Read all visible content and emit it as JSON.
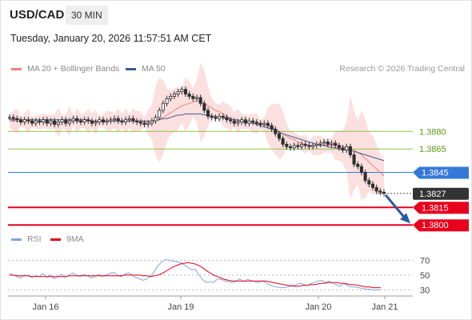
{
  "header": {
    "symbol": "USD/CAD",
    "timeframe": "30 MIN",
    "datetime": "Tuesday, January 20, 2026 11:57:51 AM CET"
  },
  "legend": {
    "ma20": "MA 20 + Bollinger Bands",
    "ma50": "MA 50",
    "credit": "Research © 2026 Trading Central",
    "rsi": "RSI",
    "ma9": "9MA"
  },
  "colors": {
    "ma20": "#f08080",
    "ma50": "#3a5a98",
    "band": "#fbd5d5",
    "candle": "#2e2e2e",
    "green_level": "#8bc34a",
    "blue_level": "#3579d8",
    "red_level": "#e8001c",
    "current": "#333333",
    "rsi": "#7da7e8",
    "rsi_ma": "#e8001c",
    "arrow": "#2f5a9b"
  },
  "chart_data": [
    {
      "type": "candlestick",
      "title": "USD/CAD 30 MIN",
      "x_labels": [
        "Jan 16",
        "Jan 19",
        "Jan 20",
        "Jan 21"
      ],
      "ylim": [
        1.3794,
        1.3924
      ],
      "levels": [
        {
          "value": 1.388,
          "label": "1.3880",
          "kind": "resistance",
          "color": "#8bc34a"
        },
        {
          "value": 1.3865,
          "label": "1.3865",
          "kind": "resistance",
          "color": "#8bc34a"
        },
        {
          "value": 1.3845,
          "label": "1.3845",
          "kind": "pivot",
          "color": "#3579d8"
        },
        {
          "value": 1.3827,
          "label": "1.3827",
          "kind": "current",
          "color": "#333333"
        },
        {
          "value": 1.3815,
          "label": "1.3815",
          "kind": "support",
          "color": "#e8001c"
        },
        {
          "value": 1.38,
          "label": "1.3800",
          "kind": "support",
          "color": "#e8001c"
        }
      ],
      "price_series": [
        1.3892,
        1.3891,
        1.389,
        1.3888,
        1.389,
        1.3889,
        1.3887,
        1.3889,
        1.3888,
        1.389,
        1.3887,
        1.3889,
        1.3886,
        1.3888,
        1.389,
        1.3887,
        1.3889,
        1.3891,
        1.3889,
        1.3888,
        1.389,
        1.3889,
        1.3887,
        1.3888,
        1.389,
        1.3888,
        1.3889,
        1.389,
        1.3891,
        1.3889,
        1.3888,
        1.389,
        1.3891,
        1.3889,
        1.3888,
        1.3887,
        1.3886,
        1.3887,
        1.3889,
        1.3892,
        1.3898,
        1.3904,
        1.3908,
        1.391,
        1.3912,
        1.3914,
        1.3916,
        1.3912,
        1.391,
        1.3908,
        1.3909,
        1.3904,
        1.3898,
        1.3893,
        1.3892,
        1.3891,
        1.3893,
        1.3892,
        1.389,
        1.3889,
        1.3887,
        1.3888,
        1.389,
        1.3887,
        1.3889,
        1.3888,
        1.3887,
        1.3886,
        1.3887,
        1.3885,
        1.3882,
        1.3878,
        1.3874,
        1.3869,
        1.3867,
        1.3866,
        1.3868,
        1.3867,
        1.3869,
        1.3868,
        1.3867,
        1.3868,
        1.3869,
        1.387,
        1.3871,
        1.3869,
        1.387,
        1.3868,
        1.3866,
        1.3864,
        1.3867,
        1.386,
        1.3852,
        1.385,
        1.3845,
        1.3838,
        1.3835,
        1.3832,
        1.3829,
        1.3828,
        1.3827
      ],
      "ma20_series": [
        1.3889,
        1.3889,
        1.3889,
        1.3888,
        1.3889,
        1.3889,
        1.3888,
        1.3888,
        1.3888,
        1.3889,
        1.3888,
        1.3888,
        1.3888,
        1.3888,
        1.3888,
        1.3888,
        1.3889,
        1.3889,
        1.3889,
        1.3889,
        1.3889,
        1.3889,
        1.3889,
        1.3888,
        1.3889,
        1.3889,
        1.3889,
        1.3889,
        1.3889,
        1.3889,
        1.3889,
        1.3889,
        1.3889,
        1.3889,
        1.3889,
        1.3889,
        1.3888,
        1.3888,
        1.3888,
        1.3889,
        1.389,
        1.3892,
        1.3894,
        1.3896,
        1.3898,
        1.39,
        1.3902,
        1.3903,
        1.3904,
        1.3905,
        1.3906,
        1.3905,
        1.3904,
        1.3902,
        1.39,
        1.3898,
        1.3897,
        1.3895,
        1.3893,
        1.3891,
        1.389,
        1.3889,
        1.3889,
        1.3888,
        1.3888,
        1.3887,
        1.3887,
        1.3886,
        1.3886,
        1.3885,
        1.3884,
        1.3882,
        1.388,
        1.3878,
        1.3876,
        1.3874,
        1.3873,
        1.3871,
        1.387,
        1.3869,
        1.3868,
        1.3868,
        1.3868,
        1.3868,
        1.3868,
        1.3868,
        1.3868,
        1.3868,
        1.3868,
        1.3867,
        1.3867,
        1.3866,
        1.3864,
        1.3862,
        1.386,
        1.3857,
        1.3854,
        1.3851,
        1.3848,
        1.3845,
        1.3842
      ],
      "ma50_series": [
        1.389,
        1.389,
        1.389,
        1.389,
        1.389,
        1.389,
        1.389,
        1.389,
        1.389,
        1.389,
        1.389,
        1.389,
        1.389,
        1.389,
        1.389,
        1.389,
        1.389,
        1.389,
        1.389,
        1.389,
        1.389,
        1.389,
        1.3889,
        1.3889,
        1.3889,
        1.3889,
        1.3889,
        1.3889,
        1.3889,
        1.3889,
        1.3889,
        1.3889,
        1.3889,
        1.3889,
        1.3889,
        1.3889,
        1.3889,
        1.3889,
        1.3889,
        1.389,
        1.389,
        1.3891,
        1.3891,
        1.3892,
        1.3893,
        1.3894,
        1.3894,
        1.3895,
        1.3895,
        1.3895,
        1.3895,
        1.3895,
        1.3894,
        1.3894,
        1.3893,
        1.3893,
        1.3892,
        1.3892,
        1.3891,
        1.3891,
        1.389,
        1.389,
        1.3889,
        1.3888,
        1.3888,
        1.3887,
        1.3886,
        1.3885,
        1.3884,
        1.3883,
        1.3882,
        1.3881,
        1.3879,
        1.3878,
        1.3877,
        1.3876,
        1.3875,
        1.3874,
        1.3873,
        1.3872,
        1.3871,
        1.387,
        1.3869,
        1.3868,
        1.3868,
        1.3867,
        1.3866,
        1.3866,
        1.3865,
        1.3865,
        1.3864,
        1.3864,
        1.3863,
        1.3862,
        1.3861,
        1.386,
        1.3859,
        1.3858,
        1.3857,
        1.3856,
        1.3855
      ]
    },
    {
      "type": "line",
      "title": "RSI",
      "ylim": [
        25,
        78
      ],
      "y_ticks": [
        70,
        50,
        30
      ],
      "series": [
        {
          "name": "RSI",
          "values": [
            52,
            50,
            48,
            46,
            50,
            49,
            47,
            49,
            48,
            52,
            47,
            50,
            45,
            48,
            51,
            47,
            50,
            53,
            50,
            48,
            51,
            49,
            46,
            48,
            51,
            48,
            50,
            52,
            54,
            50,
            48,
            51,
            53,
            50,
            47,
            45,
            43,
            45,
            49,
            55,
            63,
            68,
            71,
            70,
            69,
            68,
            67,
            64,
            61,
            57,
            58,
            50,
            44,
            40,
            41,
            40,
            45,
            44,
            42,
            41,
            40,
            42,
            45,
            41,
            44,
            43,
            41,
            40,
            42,
            40,
            37,
            35,
            34,
            33,
            33,
            34,
            37,
            36,
            39,
            38,
            36,
            38,
            40,
            42,
            43,
            40,
            42,
            39,
            37,
            35,
            39,
            36,
            34,
            34,
            33,
            32,
            31,
            31,
            30,
            30,
            30
          ]
        },
        {
          "name": "9MA",
          "values": [
            50,
            50,
            49,
            49,
            49,
            49,
            48,
            48,
            48,
            48,
            48,
            48,
            48,
            48,
            48,
            48,
            49,
            49,
            49,
            49,
            49,
            49,
            49,
            49,
            49,
            49,
            49,
            49,
            49,
            49,
            49,
            50,
            50,
            50,
            50,
            50,
            49,
            49,
            48,
            49,
            50,
            52,
            55,
            58,
            61,
            63,
            65,
            66,
            67,
            66,
            65,
            63,
            60,
            56,
            53,
            50,
            48,
            46,
            44,
            43,
            42,
            42,
            42,
            42,
            42,
            42,
            42,
            42,
            42,
            42,
            41,
            40,
            39,
            38,
            37,
            36,
            35,
            35,
            35,
            36,
            36,
            37,
            37,
            38,
            39,
            39,
            40,
            40,
            40,
            39,
            39,
            38,
            37,
            37,
            36,
            35,
            34,
            34,
            33,
            33,
            33
          ]
        }
      ]
    }
  ]
}
